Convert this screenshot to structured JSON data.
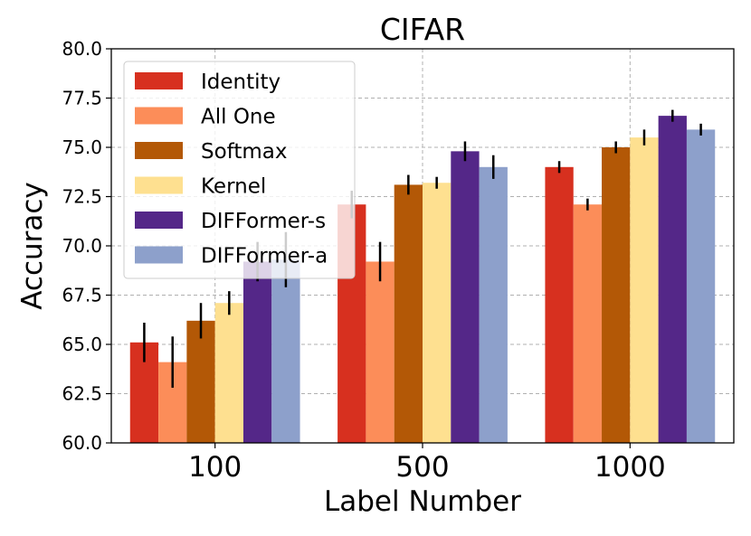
{
  "chart_data": {
    "type": "bar",
    "title": "CIFAR",
    "xlabel": "Label Number",
    "ylabel": "Accuracy",
    "ylim": [
      60.0,
      80.0
    ],
    "yticks": [
      "60.0",
      "62.5",
      "65.0",
      "67.5",
      "70.0",
      "72.5",
      "75.0",
      "77.5",
      "80.0"
    ],
    "grid": true,
    "legend_position": "top-left",
    "categories": [
      "100",
      "500",
      "1000"
    ],
    "series": [
      {
        "name": "Identity",
        "color": "#d7301f",
        "values": [
          65.1,
          72.1,
          74.0
        ],
        "errors": [
          1.0,
          0.7,
          0.3
        ]
      },
      {
        "name": "All One",
        "color": "#fc8d59",
        "values": [
          64.1,
          69.2,
          72.1
        ],
        "errors": [
          1.3,
          1.0,
          0.3
        ]
      },
      {
        "name": "Softmax",
        "color": "#b35806",
        "values": [
          66.2,
          73.1,
          75.0
        ],
        "errors": [
          0.9,
          0.5,
          0.3
        ]
      },
      {
        "name": "Kernel",
        "color": "#fee090",
        "values": [
          67.1,
          73.2,
          75.5
        ],
        "errors": [
          0.6,
          0.3,
          0.4
        ]
      },
      {
        "name": "DIFFormer-s",
        "color": "#542788",
        "values": [
          69.2,
          74.8,
          76.6
        ],
        "errors": [
          1.0,
          0.5,
          0.3
        ]
      },
      {
        "name": "DIFFormer-a",
        "color": "#8da0cb",
        "values": [
          69.3,
          74.0,
          75.9
        ],
        "errors": [
          1.4,
          0.6,
          0.3
        ]
      }
    ]
  }
}
